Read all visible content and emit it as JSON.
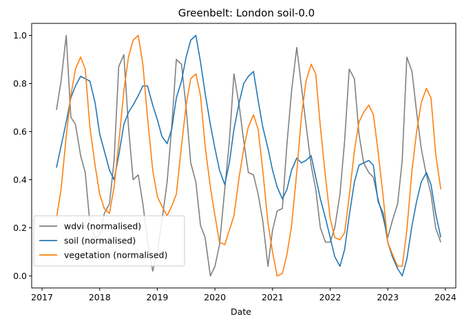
{
  "chart_data": {
    "type": "line",
    "title": "Greenbelt: London soil-0.0",
    "xlabel": "Date",
    "ylabel": "",
    "xlim": [
      2016.82,
      2024.18
    ],
    "ylim": [
      -0.05,
      1.05
    ],
    "x_ticks": [
      2017,
      2018,
      2019,
      2020,
      2021,
      2022,
      2023,
      2024
    ],
    "y_ticks": [
      0.0,
      0.2,
      0.4,
      0.6,
      0.8,
      1.0
    ],
    "grid": false,
    "legend": "lower-left",
    "series": [
      {
        "name": "wdvi (normalised)",
        "color": "#7f7f7f",
        "points": [
          [
            2017.25,
            0.69
          ],
          [
            2017.33,
            0.81
          ],
          [
            2017.42,
            1.0
          ],
          [
            2017.5,
            0.66
          ],
          [
            2017.58,
            0.63
          ],
          [
            2017.67,
            0.5
          ],
          [
            2017.75,
            0.43
          ],
          [
            2017.83,
            0.22
          ],
          [
            2017.92,
            0.16
          ],
          [
            2018.0,
            0.17
          ],
          [
            2018.08,
            0.26
          ],
          [
            2018.17,
            0.3
          ],
          [
            2018.25,
            0.48
          ],
          [
            2018.33,
            0.87
          ],
          [
            2018.42,
            0.92
          ],
          [
            2018.5,
            0.62
          ],
          [
            2018.58,
            0.4
          ],
          [
            2018.67,
            0.42
          ],
          [
            2018.75,
            0.3
          ],
          [
            2018.83,
            0.15
          ],
          [
            2018.92,
            0.02
          ],
          [
            2019.0,
            0.1
          ],
          [
            2019.08,
            0.23
          ],
          [
            2019.17,
            0.39
          ],
          [
            2019.25,
            0.62
          ],
          [
            2019.33,
            0.9
          ],
          [
            2019.42,
            0.88
          ],
          [
            2019.5,
            0.7
          ],
          [
            2019.58,
            0.47
          ],
          [
            2019.67,
            0.39
          ],
          [
            2019.75,
            0.21
          ],
          [
            2019.83,
            0.16
          ],
          [
            2019.92,
            0.0
          ],
          [
            2020.0,
            0.04
          ],
          [
            2020.08,
            0.13
          ],
          [
            2020.17,
            0.36
          ],
          [
            2020.25,
            0.56
          ],
          [
            2020.33,
            0.84
          ],
          [
            2020.42,
            0.71
          ],
          [
            2020.5,
            0.56
          ],
          [
            2020.58,
            0.43
          ],
          [
            2020.67,
            0.42
          ],
          [
            2020.75,
            0.34
          ],
          [
            2020.83,
            0.23
          ],
          [
            2020.92,
            0.04
          ],
          [
            2021.0,
            0.19
          ],
          [
            2021.08,
            0.27
          ],
          [
            2021.17,
            0.28
          ],
          [
            2021.25,
            0.55
          ],
          [
            2021.33,
            0.77
          ],
          [
            2021.42,
            0.95
          ],
          [
            2021.5,
            0.79
          ],
          [
            2021.58,
            0.63
          ],
          [
            2021.67,
            0.46
          ],
          [
            2021.75,
            0.36
          ],
          [
            2021.83,
            0.2
          ],
          [
            2021.92,
            0.14
          ],
          [
            2022.0,
            0.14
          ],
          [
            2022.08,
            0.2
          ],
          [
            2022.17,
            0.34
          ],
          [
            2022.25,
            0.56
          ],
          [
            2022.33,
            0.86
          ],
          [
            2022.42,
            0.82
          ],
          [
            2022.5,
            0.59
          ],
          [
            2022.58,
            0.47
          ],
          [
            2022.67,
            0.43
          ],
          [
            2022.75,
            0.41
          ],
          [
            2022.83,
            0.32
          ],
          [
            2022.92,
            0.24
          ],
          [
            2023.0,
            0.16
          ],
          [
            2023.08,
            0.23
          ],
          [
            2023.17,
            0.3
          ],
          [
            2023.25,
            0.48
          ],
          [
            2023.33,
            0.91
          ],
          [
            2023.42,
            0.85
          ],
          [
            2023.5,
            0.68
          ],
          [
            2023.58,
            0.53
          ],
          [
            2023.67,
            0.42
          ],
          [
            2023.75,
            0.34
          ],
          [
            2023.83,
            0.2
          ],
          [
            2023.92,
            0.14
          ]
        ]
      },
      {
        "name": "soil (normalised)",
        "color": "#1f77b4",
        "points": [
          [
            2017.25,
            0.45
          ],
          [
            2017.33,
            0.54
          ],
          [
            2017.42,
            0.64
          ],
          [
            2017.5,
            0.74
          ],
          [
            2017.58,
            0.79
          ],
          [
            2017.67,
            0.83
          ],
          [
            2017.75,
            0.82
          ],
          [
            2017.83,
            0.81
          ],
          [
            2017.92,
            0.72
          ],
          [
            2018.0,
            0.59
          ],
          [
            2018.08,
            0.52
          ],
          [
            2018.17,
            0.44
          ],
          [
            2018.25,
            0.4
          ],
          [
            2018.33,
            0.5
          ],
          [
            2018.42,
            0.63
          ],
          [
            2018.5,
            0.68
          ],
          [
            2018.58,
            0.71
          ],
          [
            2018.67,
            0.75
          ],
          [
            2018.75,
            0.79
          ],
          [
            2018.83,
            0.79
          ],
          [
            2018.92,
            0.71
          ],
          [
            2019.0,
            0.65
          ],
          [
            2019.08,
            0.58
          ],
          [
            2019.17,
            0.55
          ],
          [
            2019.25,
            0.61
          ],
          [
            2019.33,
            0.74
          ],
          [
            2019.42,
            0.81
          ],
          [
            2019.5,
            0.91
          ],
          [
            2019.58,
            0.98
          ],
          [
            2019.67,
            1.0
          ],
          [
            2019.75,
            0.89
          ],
          [
            2019.83,
            0.76
          ],
          [
            2019.92,
            0.63
          ],
          [
            2020.0,
            0.53
          ],
          [
            2020.08,
            0.44
          ],
          [
            2020.17,
            0.38
          ],
          [
            2020.25,
            0.47
          ],
          [
            2020.33,
            0.61
          ],
          [
            2020.42,
            0.72
          ],
          [
            2020.5,
            0.8
          ],
          [
            2020.58,
            0.83
          ],
          [
            2020.67,
            0.85
          ],
          [
            2020.75,
            0.73
          ],
          [
            2020.83,
            0.62
          ],
          [
            2020.92,
            0.53
          ],
          [
            2021.0,
            0.44
          ],
          [
            2021.08,
            0.37
          ],
          [
            2021.17,
            0.32
          ],
          [
            2021.25,
            0.36
          ],
          [
            2021.33,
            0.44
          ],
          [
            2021.42,
            0.49
          ],
          [
            2021.5,
            0.47
          ],
          [
            2021.58,
            0.48
          ],
          [
            2021.67,
            0.5
          ],
          [
            2021.75,
            0.41
          ],
          [
            2021.83,
            0.32
          ],
          [
            2021.92,
            0.24
          ],
          [
            2022.0,
            0.16
          ],
          [
            2022.08,
            0.08
          ],
          [
            2022.17,
            0.04
          ],
          [
            2022.25,
            0.11
          ],
          [
            2022.33,
            0.25
          ],
          [
            2022.42,
            0.39
          ],
          [
            2022.5,
            0.46
          ],
          [
            2022.58,
            0.47
          ],
          [
            2022.67,
            0.48
          ],
          [
            2022.75,
            0.46
          ],
          [
            2022.83,
            0.31
          ],
          [
            2022.92,
            0.26
          ],
          [
            2023.0,
            0.14
          ],
          [
            2023.08,
            0.08
          ],
          [
            2023.17,
            0.03
          ],
          [
            2023.25,
            0.0
          ],
          [
            2023.33,
            0.07
          ],
          [
            2023.42,
            0.21
          ],
          [
            2023.5,
            0.31
          ],
          [
            2023.58,
            0.39
          ],
          [
            2023.67,
            0.43
          ],
          [
            2023.75,
            0.38
          ],
          [
            2023.83,
            0.26
          ],
          [
            2023.92,
            0.16
          ]
        ]
      },
      {
        "name": "vegetation (normalised)",
        "color": "#ff7f0e",
        "points": [
          [
            2017.25,
            0.24
          ],
          [
            2017.33,
            0.36
          ],
          [
            2017.42,
            0.58
          ],
          [
            2017.5,
            0.75
          ],
          [
            2017.58,
            0.86
          ],
          [
            2017.67,
            0.91
          ],
          [
            2017.75,
            0.86
          ],
          [
            2017.83,
            0.62
          ],
          [
            2017.92,
            0.46
          ],
          [
            2018.0,
            0.34
          ],
          [
            2018.08,
            0.28
          ],
          [
            2018.17,
            0.26
          ],
          [
            2018.25,
            0.37
          ],
          [
            2018.33,
            0.55
          ],
          [
            2018.42,
            0.77
          ],
          [
            2018.5,
            0.91
          ],
          [
            2018.58,
            0.98
          ],
          [
            2018.67,
            1.0
          ],
          [
            2018.75,
            0.88
          ],
          [
            2018.83,
            0.66
          ],
          [
            2018.92,
            0.44
          ],
          [
            2019.0,
            0.33
          ],
          [
            2019.08,
            0.29
          ],
          [
            2019.17,
            0.25
          ],
          [
            2019.25,
            0.29
          ],
          [
            2019.33,
            0.34
          ],
          [
            2019.42,
            0.54
          ],
          [
            2019.5,
            0.71
          ],
          [
            2019.58,
            0.82
          ],
          [
            2019.67,
            0.84
          ],
          [
            2019.75,
            0.75
          ],
          [
            2019.83,
            0.54
          ],
          [
            2019.92,
            0.37
          ],
          [
            2020.0,
            0.25
          ],
          [
            2020.08,
            0.14
          ],
          [
            2020.17,
            0.13
          ],
          [
            2020.25,
            0.19
          ],
          [
            2020.33,
            0.25
          ],
          [
            2020.42,
            0.41
          ],
          [
            2020.5,
            0.53
          ],
          [
            2020.58,
            0.62
          ],
          [
            2020.67,
            0.67
          ],
          [
            2020.75,
            0.61
          ],
          [
            2020.83,
            0.44
          ],
          [
            2020.92,
            0.22
          ],
          [
            2021.0,
            0.1
          ],
          [
            2021.08,
            0.0
          ],
          [
            2021.17,
            0.01
          ],
          [
            2021.25,
            0.09
          ],
          [
            2021.33,
            0.21
          ],
          [
            2021.42,
            0.43
          ],
          [
            2021.5,
            0.66
          ],
          [
            2021.58,
            0.81
          ],
          [
            2021.67,
            0.88
          ],
          [
            2021.75,
            0.84
          ],
          [
            2021.83,
            0.62
          ],
          [
            2021.92,
            0.41
          ],
          [
            2022.0,
            0.24
          ],
          [
            2022.08,
            0.16
          ],
          [
            2022.17,
            0.15
          ],
          [
            2022.25,
            0.18
          ],
          [
            2022.33,
            0.33
          ],
          [
            2022.42,
            0.52
          ],
          [
            2022.5,
            0.64
          ],
          [
            2022.58,
            0.68
          ],
          [
            2022.67,
            0.71
          ],
          [
            2022.75,
            0.67
          ],
          [
            2022.83,
            0.52
          ],
          [
            2022.92,
            0.33
          ],
          [
            2023.0,
            0.14
          ],
          [
            2023.08,
            0.09
          ],
          [
            2023.17,
            0.04
          ],
          [
            2023.25,
            0.04
          ],
          [
            2023.33,
            0.19
          ],
          [
            2023.42,
            0.44
          ],
          [
            2023.5,
            0.6
          ],
          [
            2023.58,
            0.72
          ],
          [
            2023.67,
            0.78
          ],
          [
            2023.75,
            0.74
          ],
          [
            2023.83,
            0.51
          ],
          [
            2023.92,
            0.36
          ]
        ]
      }
    ]
  }
}
